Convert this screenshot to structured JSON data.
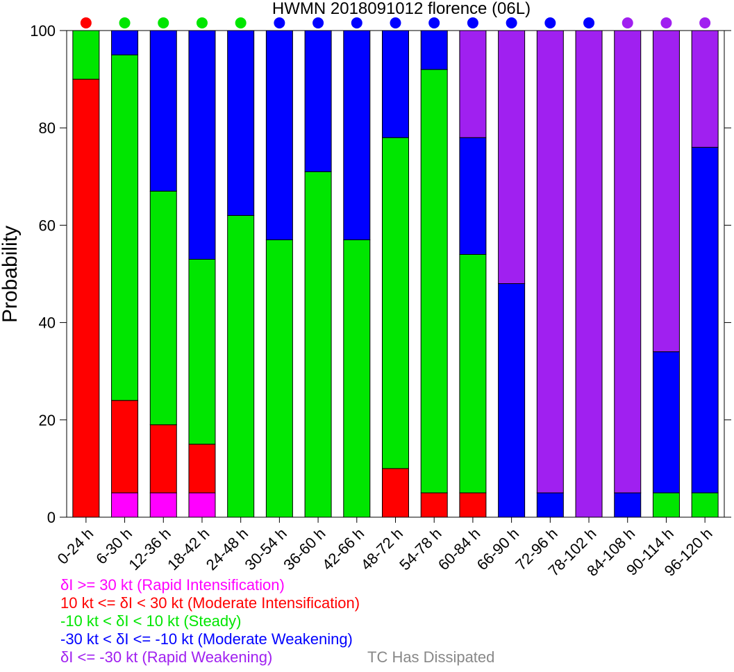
{
  "chart_data": {
    "type": "bar",
    "stacked": true,
    "title": "HWMN 2018091012 florence (06L)",
    "xlabel": "",
    "ylabel": "Probability",
    "ylim": [
      0,
      100
    ],
    "yticks": [
      0,
      20,
      40,
      60,
      80,
      100
    ],
    "grid": false,
    "legend_position": "bottom-left",
    "categories": [
      "0-24 h",
      "6-30 h",
      "12-36 h",
      "18-42 h",
      "24-48 h",
      "30-54 h",
      "36-60 h",
      "42-66 h",
      "48-72 h",
      "54-78 h",
      "60-84 h",
      "66-90 h",
      "72-96 h",
      "78-102 h",
      "84-108 h",
      "90-114 h",
      "96-120 h"
    ],
    "series": [
      {
        "name": "δI >= 30 kt (Rapid Intensification)",
        "color": "#ff00ff",
        "values": [
          0,
          5,
          5,
          5,
          0,
          0,
          0,
          0,
          0,
          0,
          0,
          0,
          0,
          0,
          0,
          0,
          0
        ]
      },
      {
        "name": "10 kt <= δI < 30 kt (Moderate Intensification)",
        "color": "#ff0000",
        "values": [
          90,
          19,
          14,
          10,
          0,
          0,
          0,
          0,
          10,
          5,
          5,
          0,
          0,
          0,
          0,
          0,
          0
        ]
      },
      {
        "name": "-10 kt < δI < 10 kt (Steady)",
        "color": "#00e600",
        "values": [
          10,
          71,
          48,
          38,
          62,
          57,
          71,
          57,
          68,
          87,
          49,
          0,
          0,
          0,
          0,
          5,
          5
        ]
      },
      {
        "name": "-30 kt < δI <= -10 kt (Moderate Weakening)",
        "color": "#0000ff",
        "values": [
          0,
          5,
          33,
          47,
          38,
          43,
          29,
          43,
          22,
          8,
          24,
          48,
          5,
          0,
          5,
          29,
          71
        ]
      },
      {
        "name": "δI <= -30 kt (Rapid Weakening)",
        "color": "#a020f0",
        "values": [
          0,
          0,
          0,
          0,
          0,
          0,
          0,
          0,
          0,
          0,
          22,
          52,
          95,
          100,
          95,
          66,
          24
        ]
      }
    ],
    "legend_extra": {
      "name": "TC Has Dissipated",
      "color": "#888888"
    },
    "top_markers": [
      "#ff0000",
      "#00e600",
      "#00e600",
      "#00e600",
      "#00e600",
      "#0000ff",
      "#0000ff",
      "#0000ff",
      "#0000ff",
      "#0000ff",
      "#0000ff",
      "#0000ff",
      "#0000ff",
      "#0000ff",
      "#a020f0",
      "#a020f0",
      "#a020f0"
    ]
  }
}
